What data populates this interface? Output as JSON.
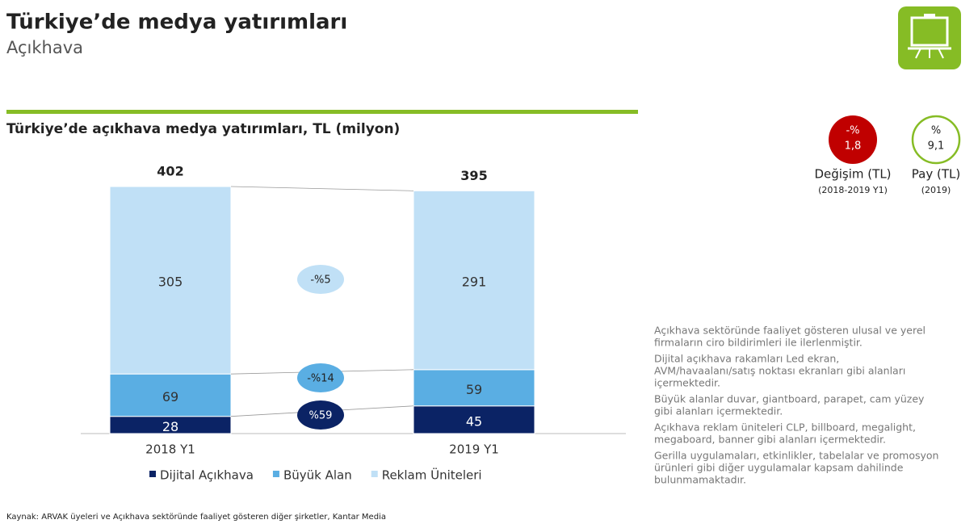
{
  "header": {
    "title": "Türkiye’de medya yatırımları",
    "subtitle": "Açıkhava"
  },
  "chart_data": {
    "type": "stacked-bar",
    "title": "Türkiye’de açıkhava medya yatırımları, TL (milyon)",
    "categories": [
      "2018 Y1",
      "2019 Y1"
    ],
    "series": [
      {
        "name": "Dijital Açıkhava",
        "color": "#0b2365",
        "values": [
          28,
          45
        ]
      },
      {
        "name": "Büyük Alan",
        "color": "#5aaee3",
        "values": [
          69,
          59
        ]
      },
      {
        "name": "Reklam Üniteleri",
        "color": "#c0e0f6",
        "values": [
          305,
          291
        ]
      }
    ],
    "totals": [
      402,
      395
    ],
    "change_labels": [
      "%59",
      "-%14",
      "-%5"
    ]
  },
  "kpis": [
    {
      "top": "-%",
      "value": "1,8",
      "label": "Değişim (TL)",
      "sublabel": "(2018-2019 Y1)"
    },
    {
      "top": "%",
      "value": "9,1",
      "label": "Pay (TL)",
      "sublabel": "(2019)"
    }
  ],
  "notes": [
    [
      "Açıkhava sektöründe faaliyet gösteren ulusal ve yerel",
      "firmaların ciro bildirimleri ile ilerlenmiştir."
    ],
    [
      "Dijital açıkhava rakamları Led ekran,",
      "AVM/havaalanı/satış noktası ekranları gibi alanları",
      "içermektedir."
    ],
    [
      "Büyük alanlar duvar, giantboard, parapet, cam yüzey",
      "gibi alanları içermektedir."
    ],
    [
      "Açıkhava reklam üniteleri CLP, billboard, megalight,",
      "megaboard, banner gibi alanları içermektedir."
    ],
    [
      "Gerilla uygulamaları, etkinlikler, tabelalar ve promosyon",
      "ürünleri gibi diğer uygulamalar kapsam dahilinde",
      "bulunmamaktadır."
    ]
  ],
  "source": "Kaynak: ARVAK üyeleri ve Açıkhava sektöründe faaliyet gösteren diğer şirketler, Kantar Media"
}
